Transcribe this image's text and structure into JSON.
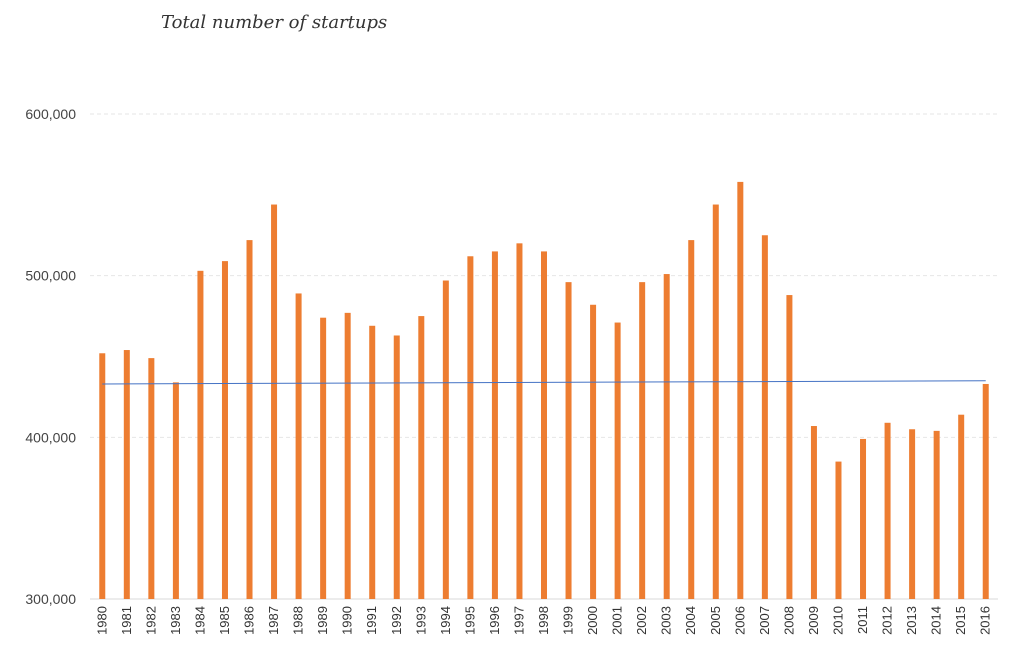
{
  "chart_data": {
    "type": "bar",
    "title": "Total number of startups",
    "xlabel": "",
    "ylabel": "",
    "ylim": [
      300000,
      600000
    ],
    "yticks": [
      300000,
      400000,
      500000,
      600000
    ],
    "ytick_labels": [
      "300,000",
      "400,000",
      "500,000",
      "600,000"
    ],
    "grid": true,
    "legend": "none",
    "categories": [
      "1980",
      "1981",
      "1982",
      "1983",
      "1984",
      "1985",
      "1986",
      "1987",
      "1988",
      "1989",
      "1990",
      "1991",
      "1992",
      "1993",
      "1994",
      "1995",
      "1996",
      "1997",
      "1998",
      "1999",
      "2000",
      "2001",
      "2002",
      "2003",
      "2004",
      "2005",
      "2006",
      "2007",
      "2008",
      "2009",
      "2010",
      "2011",
      "2012",
      "2013",
      "2014",
      "2015",
      "2016"
    ],
    "values": [
      452000,
      454000,
      449000,
      434000,
      503000,
      509000,
      522000,
      544000,
      489000,
      474000,
      477000,
      469000,
      463000,
      475000,
      497000,
      512000,
      515000,
      520000,
      515000,
      496000,
      482000,
      471000,
      496000,
      501000,
      522000,
      544000,
      558000,
      525000,
      488000,
      407000,
      385000,
      399000,
      409000,
      405000,
      404000,
      414000,
      433000
    ],
    "trendline": {
      "start": 433000,
      "end": 435000
    },
    "colors": {
      "bars": "#ed7d31",
      "trendline": "#4472c4",
      "grid": "#e6e6e6"
    }
  }
}
